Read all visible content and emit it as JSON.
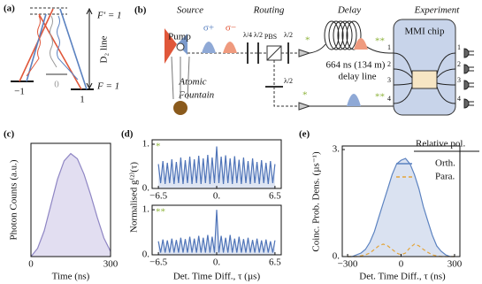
{
  "panel_a": {
    "label": "(a)",
    "upper_level": "F′ = 1",
    "transition": "D₂ line",
    "lower_level": "F = 1",
    "sublevels": [
      "−1",
      "0",
      "1"
    ]
  },
  "panel_b": {
    "label": "(b)",
    "sections": [
      "Source",
      "Routing",
      "Delay",
      "Experiment"
    ],
    "pump": "Pump",
    "sigma_plus": "σ+",
    "sigma_minus": "σ−",
    "fountain": [
      "Atomic",
      "Fountain"
    ],
    "waveplates": [
      "λ/4",
      "λ/2",
      "λ/2",
      "λ/2"
    ],
    "pbs": "PBS",
    "delay": [
      "664 ns (134 m)",
      "delay line"
    ],
    "chip": "MMI chip",
    "inputs": [
      "1",
      "2",
      "3",
      "4"
    ],
    "outputs": [
      "1",
      "2",
      "3",
      "4"
    ],
    "markers": [
      "*",
      "**",
      "*",
      "**"
    ]
  },
  "chart_data": [
    {
      "type": "area",
      "panel_label": "(c)",
      "x_label": "Time (ns)",
      "y_label": "Photon Counts (a.u.)",
      "color": "#8f86c4",
      "fill": "#ddd8ee",
      "x": [
        0,
        25,
        50,
        75,
        100,
        125,
        150,
        175,
        200,
        225,
        250,
        275,
        300
      ],
      "values": [
        0.0,
        0.08,
        0.25,
        0.5,
        0.75,
        0.93,
        1.0,
        0.95,
        0.8,
        0.6,
        0.38,
        0.18,
        0.05
      ],
      "xlim": [
        0,
        300
      ],
      "xticks": [
        0,
        300
      ],
      "ylim": [
        0,
        1.1
      ]
    },
    {
      "type": "area",
      "panel_label": "(d)",
      "y_label": "Normalised g⁽²⁾(τ)",
      "annotation": "*",
      "color": "#4f74b8",
      "fill": "#d8e1f1",
      "x": [
        -6.5,
        -6.25,
        -6,
        -5.75,
        -5.5,
        -5.25,
        -5,
        -4.75,
        -4.5,
        -4.25,
        -4,
        -3.75,
        -3.5,
        -3.25,
        -3,
        -2.75,
        -2.5,
        -2.25,
        -2,
        -1.75,
        -1.5,
        -1.25,
        -1,
        -0.75,
        -0.5,
        -0.25,
        0,
        0.25,
        0.5,
        0.75,
        1,
        1.25,
        1.5,
        1.75,
        2,
        2.25,
        2.5,
        2.75,
        3,
        3.25,
        3.5,
        3.75,
        4,
        4.25,
        4.5,
        4.75,
        5,
        5.25,
        5.5,
        5.75,
        6,
        6.25,
        6.5
      ],
      "values": [
        0.55,
        0.12,
        0.62,
        0.1,
        0.58,
        0.12,
        0.66,
        0.1,
        0.6,
        0.12,
        0.7,
        0.1,
        0.64,
        0.12,
        0.72,
        0.1,
        0.66,
        0.12,
        0.74,
        0.1,
        0.68,
        0.12,
        0.76,
        0.1,
        0.7,
        0.12,
        0.95,
        0.12,
        0.72,
        0.1,
        0.75,
        0.12,
        0.68,
        0.1,
        0.73,
        0.12,
        0.65,
        0.1,
        0.7,
        0.12,
        0.62,
        0.1,
        0.68,
        0.12,
        0.6,
        0.1,
        0.64,
        0.12,
        0.58,
        0.1,
        0.62,
        0.12,
        0.55
      ],
      "xlim": [
        -7.2,
        7.2
      ],
      "xticks": [
        {
          "value": -6.5,
          "label": "−6.5"
        },
        {
          "value": 0,
          "label": "0."
        },
        6.5
      ],
      "ylim": [
        0,
        1.1
      ],
      "yticks": [
        {
          "value": 1,
          "label": "1."
        },
        {
          "value": 0,
          "label": "0."
        }
      ]
    },
    {
      "type": "area",
      "x_label": "Det. Time Diff., τ (µs)",
      "annotation": "**",
      "color": "#4f74b8",
      "fill": "#d8e1f1",
      "x": [
        -6.5,
        -6.25,
        -6,
        -5.75,
        -5.5,
        -5.25,
        -5,
        -4.75,
        -4.5,
        -4.25,
        -4,
        -3.75,
        -3.5,
        -3.25,
        -3,
        -2.75,
        -2.5,
        -2.25,
        -2,
        -1.75,
        -1.5,
        -1.25,
        -1,
        -0.75,
        -0.5,
        -0.25,
        0,
        0.25,
        0.5,
        0.75,
        1,
        1.25,
        1.5,
        1.75,
        2,
        2.25,
        2.5,
        2.75,
        3,
        3.25,
        3.5,
        3.75,
        4,
        4.25,
        4.5,
        4.75,
        5,
        5.25,
        5.5,
        5.75,
        6,
        6.25,
        6.5
      ],
      "values": [
        0.3,
        0.05,
        0.34,
        0.05,
        0.32,
        0.05,
        0.36,
        0.05,
        0.33,
        0.05,
        0.38,
        0.05,
        0.35,
        0.05,
        0.4,
        0.05,
        0.36,
        0.05,
        0.42,
        0.05,
        0.38,
        0.05,
        0.44,
        0.05,
        0.4,
        0.05,
        1.0,
        0.05,
        0.42,
        0.05,
        0.38,
        0.05,
        0.44,
        0.05,
        0.36,
        0.05,
        0.4,
        0.05,
        0.35,
        0.05,
        0.38,
        0.05,
        0.33,
        0.05,
        0.36,
        0.05,
        0.32,
        0.05,
        0.34,
        0.05,
        0.3,
        0.05,
        0.32
      ],
      "xlim": [
        -7.2,
        7.2
      ],
      "xticks": [
        {
          "value": -6.5,
          "label": "−6.5"
        },
        {
          "value": 0,
          "label": "0."
        },
        6.5
      ],
      "ylim": [
        0,
        1.1
      ],
      "yticks": [
        {
          "value": 1,
          "label": "1."
        },
        {
          "value": 0,
          "label": "0."
        }
      ]
    },
    {
      "type": "area",
      "panel_label": "(e)",
      "x_label": "Det. Time Diff., τ (ns)",
      "y_label": "Coinc. Prob. Dens. (µs⁻¹)",
      "legend_title": "Relative pol.",
      "x": [
        -300,
        -275,
        -250,
        -225,
        -200,
        -175,
        -150,
        -125,
        -100,
        -75,
        -50,
        -25,
        0,
        25,
        50,
        75,
        100,
        125,
        150,
        175,
        200,
        225,
        250,
        275,
        300
      ],
      "series": [
        {
          "name": "Orth.",
          "color": "#5b82c0",
          "fill": "#d3ddef",
          "values": [
            0,
            0,
            0.05,
            0.1,
            0.2,
            0.4,
            0.7,
            1.1,
            1.5,
            1.9,
            2.3,
            2.6,
            2.7,
            2.75,
            2.6,
            2.3,
            1.9,
            1.4,
            1.0,
            0.6,
            0.3,
            0.15,
            0.05,
            0,
            0
          ]
        },
        {
          "name": "Para.",
          "color": "#e3a43a",
          "dash": true,
          "values": [
            0,
            0,
            0,
            0.02,
            0.05,
            0.1,
            0.2,
            0.3,
            0.35,
            0.3,
            0.2,
            0.1,
            0.05,
            0.1,
            0.25,
            0.35,
            0.3,
            0.2,
            0.12,
            0.05,
            0.02,
            0,
            0,
            0,
            0
          ]
        }
      ],
      "xlim": [
        -330,
        330
      ],
      "xticks": [
        {
          "value": -300,
          "label": "−300"
        },
        0,
        300
      ],
      "ylim": [
        0,
        3.1
      ],
      "yticks": [
        {
          "value": 3,
          "label": "3."
        },
        {
          "value": 0,
          "label": "0."
        }
      ]
    }
  ]
}
